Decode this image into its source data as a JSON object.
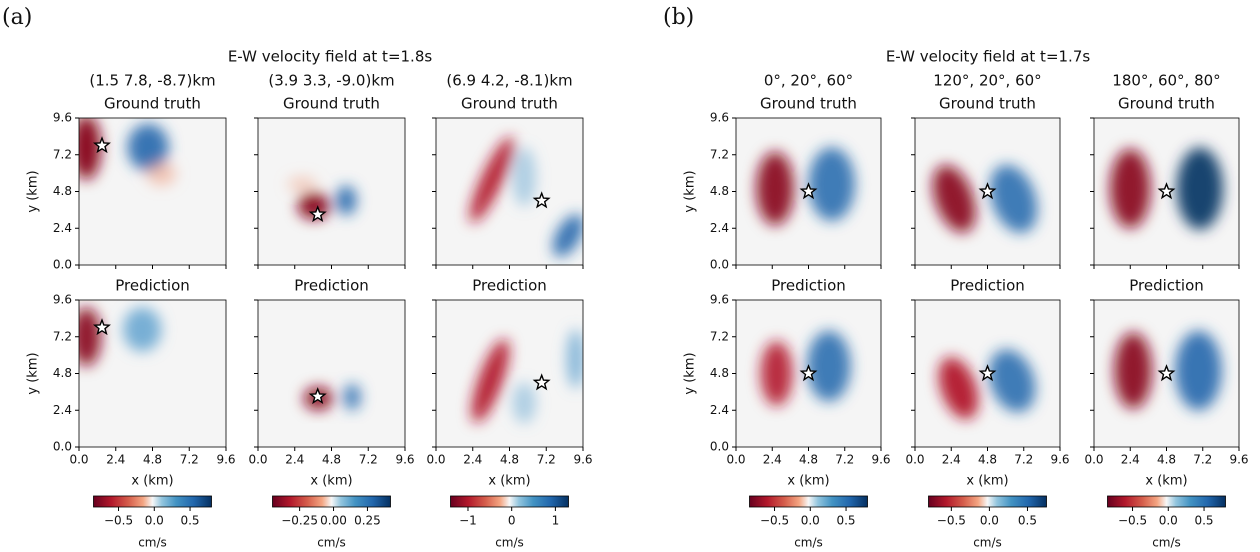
{
  "chart_data": {
    "type": "heatmap",
    "xlabel": "x (km)",
    "ylabel": "y (km)",
    "colorbar_label": "cm/s",
    "xlim": [
      0,
      9.6
    ],
    "ylim": [
      0,
      9.6
    ],
    "ticks": [
      {
        "value": 0,
        "label": "0.0"
      },
      2.4,
      4.8,
      7.2,
      9.6
    ],
    "row_titles": [
      "Ground truth",
      "Prediction"
    ],
    "groups": [
      {
        "label": "(a)",
        "title": "E-W velocity field at t=1.8s",
        "columns": [
          {
            "header": "(1.5 7.8, -8.7)km",
            "star": [
              1.5,
              7.8
            ],
            "clim": [
              -0.85,
              0.8
            ],
            "cticks": [
              {
                "value": -0.5,
                "label": "−0.5"
              },
              {
                "value": 0,
                "label": "0.0"
              },
              0.5
            ]
          },
          {
            "header": "(3.9 3.3, -9.0)km",
            "star": [
              3.9,
              3.3
            ],
            "clim": [
              -0.45,
              0.42
            ],
            "cticks": [
              {
                "value": -0.25,
                "label": "−0.25"
              },
              {
                "value": 0,
                "label": "0.00"
              },
              0.25
            ]
          },
          {
            "header": "(6.9 4.2, -8.1)km",
            "star": [
              6.9,
              4.2
            ],
            "clim": [
              -1.4,
              1.3
            ],
            "cticks": [
              {
                "value": -1,
                "label": "−1"
              },
              0,
              1
            ]
          }
        ]
      },
      {
        "label": "(b)",
        "title": "E-W velocity field at t=1.7s",
        "columns": [
          {
            "header": "0°, 20°, 60°",
            "star": [
              4.8,
              4.8
            ],
            "clim": [
              -0.85,
              0.8
            ],
            "cticks": [
              {
                "value": -0.5,
                "label": "−0.5"
              },
              {
                "value": 0,
                "label": "0.0"
              },
              0.5
            ]
          },
          {
            "header": "120°, 20°, 60°",
            "star": [
              4.8,
              4.8
            ],
            "clim": [
              -0.8,
              0.75
            ],
            "cticks": [
              {
                "value": -0.5,
                "label": "−0.5"
              },
              {
                "value": 0,
                "label": "0.0"
              },
              0.5
            ]
          },
          {
            "header": "180°, 60°, 80°",
            "star": [
              4.8,
              4.8
            ],
            "clim": [
              -0.85,
              0.8
            ],
            "cticks": [
              {
                "value": -0.5,
                "label": "−0.5"
              },
              {
                "value": 0,
                "label": "0.0"
              },
              0.5
            ]
          }
        ]
      }
    ]
  }
}
